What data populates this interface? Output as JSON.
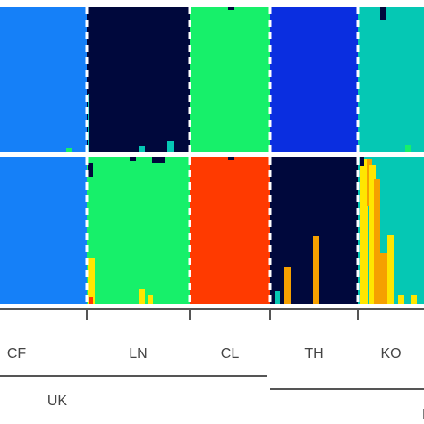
{
  "chart_data": {
    "type": "bar",
    "description_type": "stacked-bar admixture (STRUCTURE) plot",
    "populations": [
      "CF",
      "LN",
      "CL",
      "TH",
      "KO"
    ],
    "groups": [
      {
        "label": "UK",
        "populations": [
          "CF",
          "LN",
          "CL"
        ]
      },
      {
        "label": "N",
        "populations": [
          "TH",
          "KO"
        ]
      }
    ],
    "panels": [
      {
        "cluster_colors": {
          "blue": "#1580f8",
          "navy": "#00083c",
          "green": "#17f06a",
          "royal": "#0a2ee0",
          "teal": "#05c8b4"
        },
        "population_main_color": {
          "CF": "#1580f8",
          "LN": "#00083c",
          "CL": "#17f06a",
          "TH": "#0a2ee0",
          "KO": "#05c8b4"
        }
      },
      {
        "cluster_colors": {
          "blue": "#1580f8",
          "green": "#17f06a",
          "red": "#ff3a00",
          "navy": "#00083c",
          "teal": "#05c8b4",
          "yellow": "#ffe600",
          "orange": "#f5a000"
        },
        "population_main_color": {
          "CF": "#1580f8",
          "LN": "#17f06a",
          "CL": "#ff3a00",
          "TH": "#00083c",
          "KO": "#05c8b4"
        }
      }
    ],
    "axis_labels": {
      "xlabel": "",
      "ylabel": ""
    },
    "ylim": [
      0,
      1
    ]
  }
}
